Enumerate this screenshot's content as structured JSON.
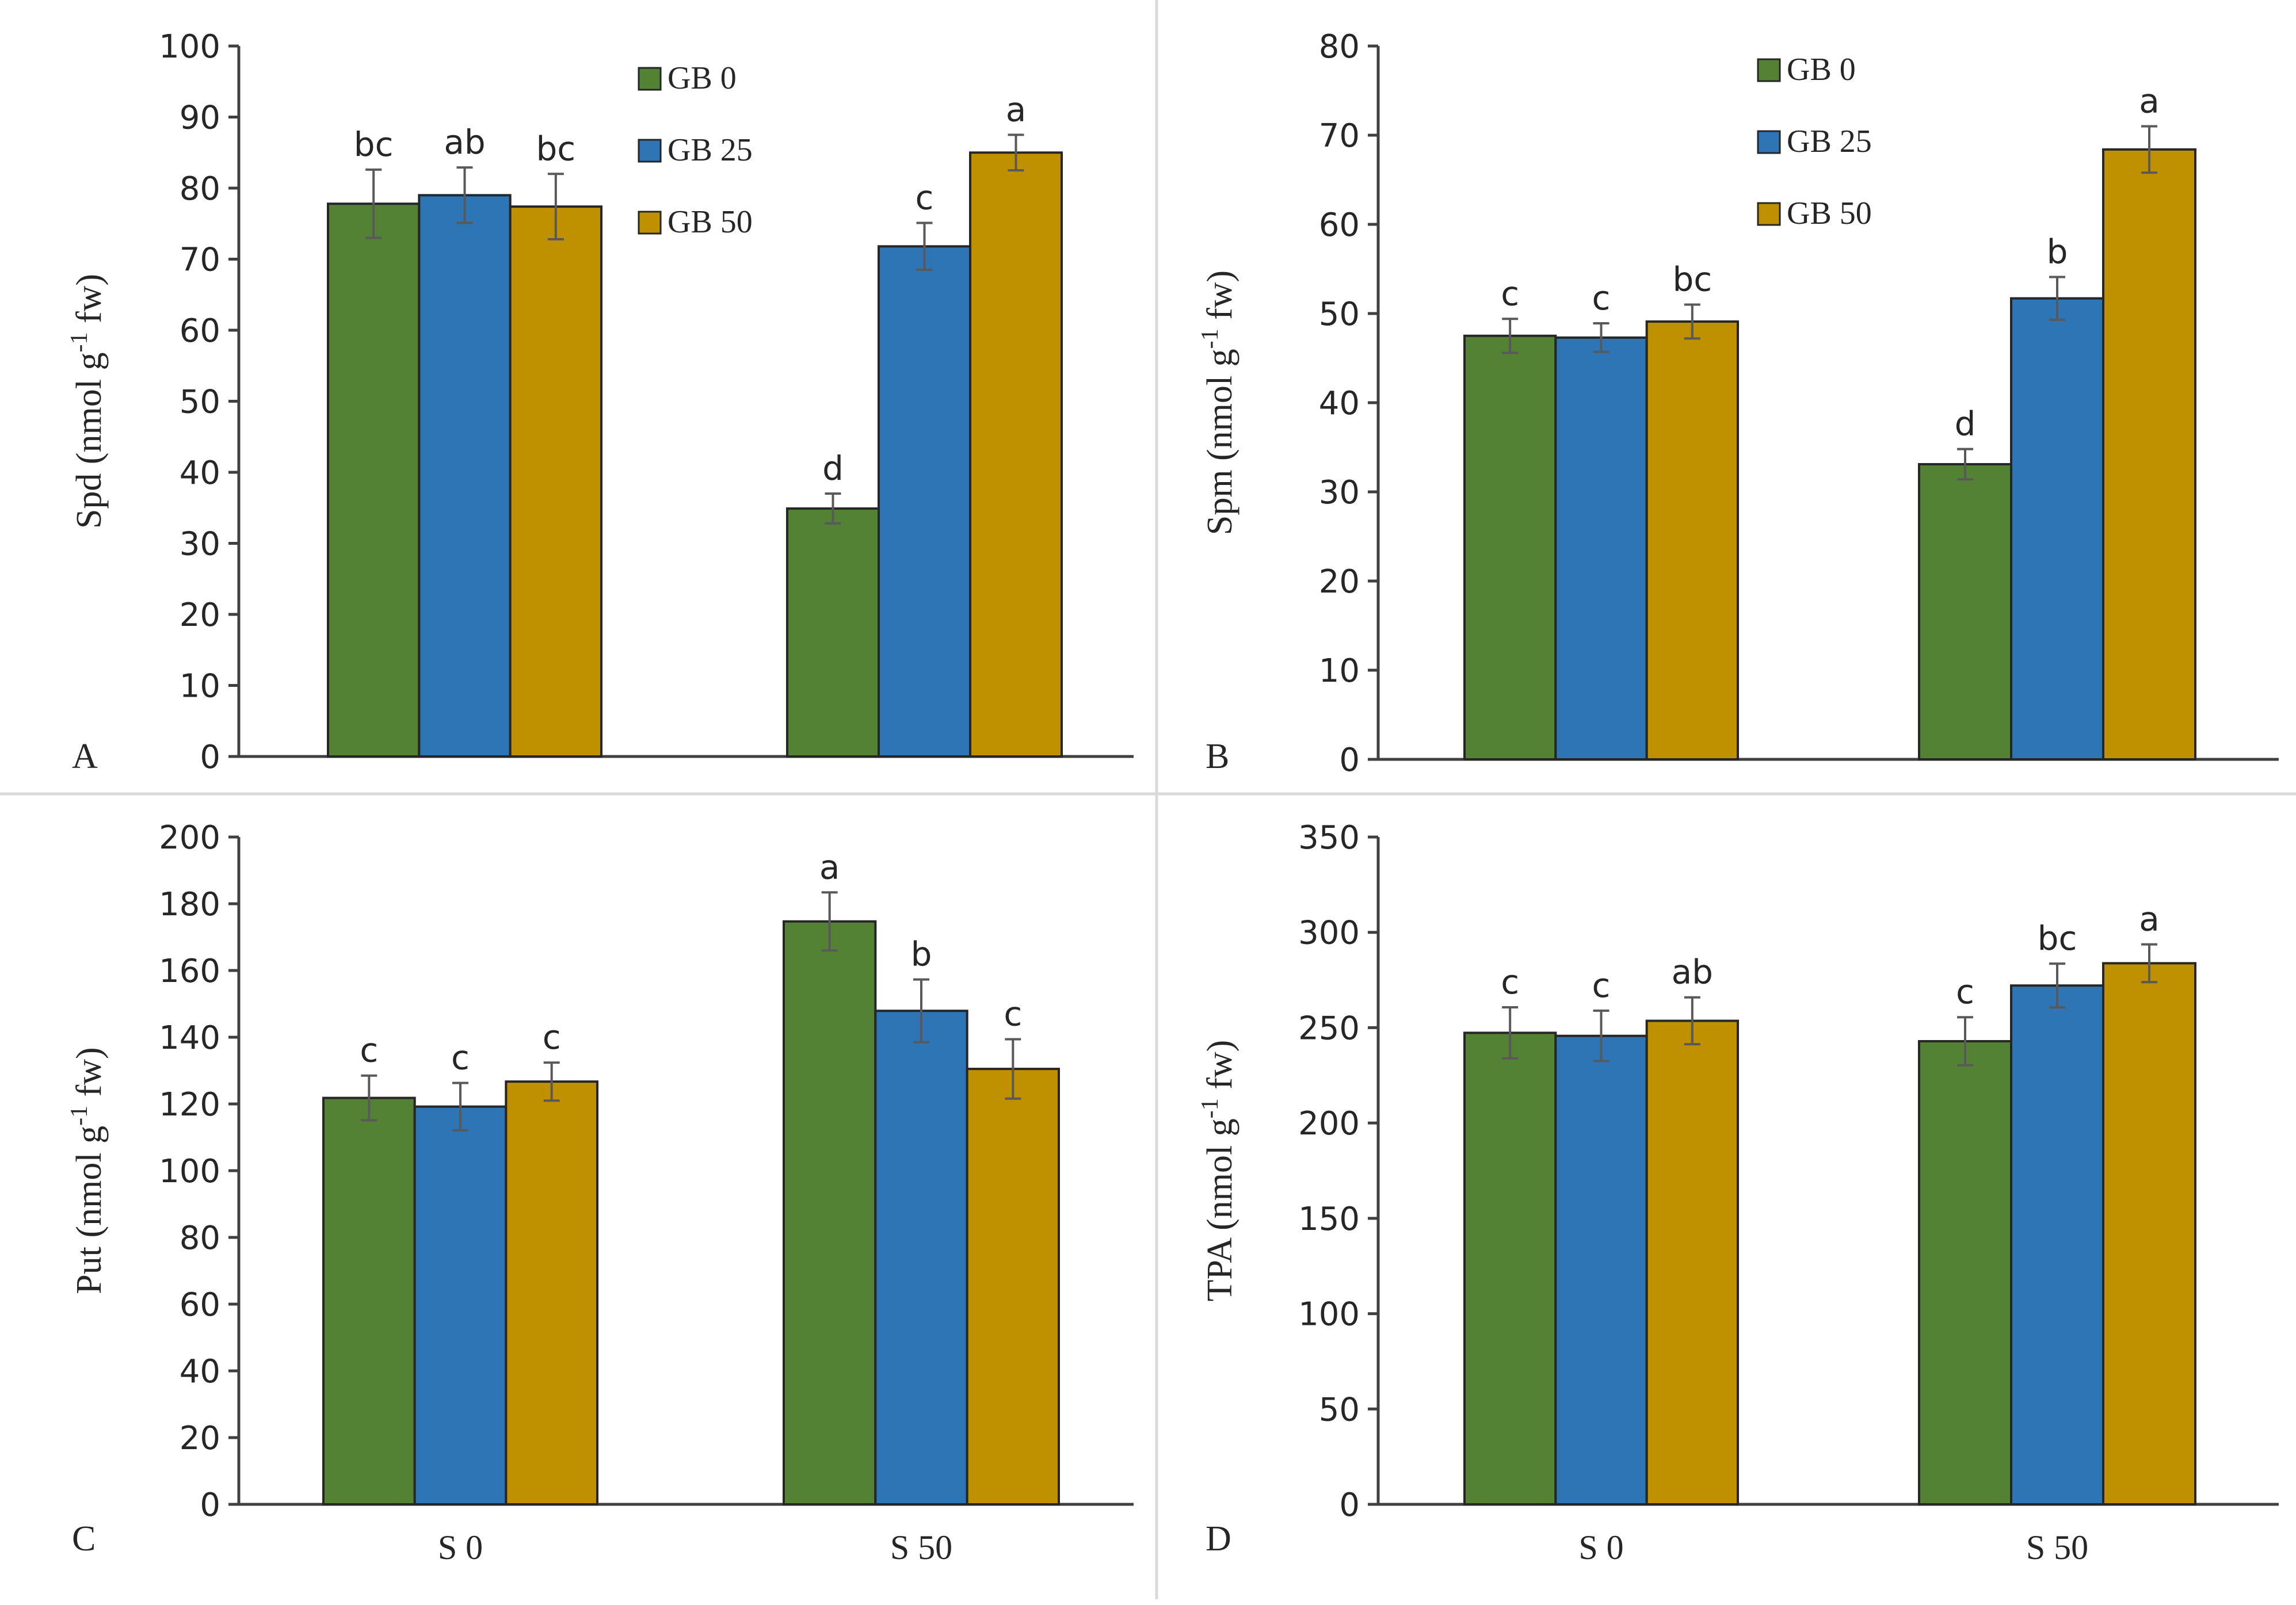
{
  "colors": {
    "GB 0": "#548235",
    "GB 25": "#2e75b6",
    "GB 50": "#bf9000"
  },
  "chart_data": [
    {
      "type": "bar",
      "panel": "A",
      "ylabel": "Spd (nmol g-1 fw)",
      "ylabel_main": "Spd (nmol g",
      "ylabel_sup": "-1",
      "ylabel_tail": " fw)",
      "ylim": [
        0,
        100
      ],
      "yticks": [
        0,
        10,
        20,
        30,
        40,
        50,
        60,
        70,
        80,
        90,
        100
      ],
      "categories": [
        "S 0",
        "S 50"
      ],
      "show_categories": false,
      "legend": true,
      "series": [
        {
          "name": "GB 0",
          "values": [
            77.8,
            34.9
          ],
          "errors": [
            4.8,
            2.1
          ],
          "labels": [
            "bc",
            "d"
          ]
        },
        {
          "name": "GB 25",
          "values": [
            79.0,
            71.8
          ],
          "errors": [
            3.9,
            3.3
          ],
          "labels": [
            "ab",
            "c"
          ]
        },
        {
          "name": "GB 50",
          "values": [
            77.4,
            85.0
          ],
          "errors": [
            4.6,
            2.5
          ],
          "labels": [
            "bc",
            "a"
          ]
        }
      ]
    },
    {
      "type": "bar",
      "panel": "B",
      "ylabel": "Spm (nmol g-1 fw)",
      "ylabel_main": "Spm (nmol g",
      "ylabel_sup": "-1",
      "ylabel_tail": " fw)",
      "ylim": [
        0,
        80
      ],
      "yticks": [
        0,
        10,
        20,
        30,
        40,
        50,
        60,
        70,
        80
      ],
      "categories": [
        "S 0",
        "S 50"
      ],
      "show_categories": false,
      "legend": true,
      "series": [
        {
          "name": "GB 0",
          "values": [
            47.5,
            33.1
          ],
          "errors": [
            1.9,
            1.7
          ],
          "labels": [
            "c",
            "d"
          ]
        },
        {
          "name": "GB 25",
          "values": [
            47.3,
            51.7
          ],
          "errors": [
            1.6,
            2.4
          ],
          "labels": [
            "c",
            "b"
          ]
        },
        {
          "name": "GB 50",
          "values": [
            49.1,
            68.4
          ],
          "errors": [
            1.9,
            2.6
          ],
          "labels": [
            "bc",
            "a"
          ]
        }
      ]
    },
    {
      "type": "bar",
      "panel": "C",
      "ylabel": "Put (nmol g-1 fw)",
      "ylabel_main": "Put (nmol g",
      "ylabel_sup": "-1",
      "ylabel_tail": " fw)",
      "ylim": [
        0,
        200
      ],
      "yticks": [
        0,
        20,
        40,
        60,
        80,
        100,
        120,
        140,
        160,
        180,
        200
      ],
      "categories": [
        "S 0",
        "S 50"
      ],
      "show_categories": true,
      "legend": false,
      "series": [
        {
          "name": "GB 0",
          "values": [
            121.8,
            174.7
          ],
          "errors": [
            6.7,
            8.7
          ],
          "labels": [
            "c",
            "a"
          ]
        },
        {
          "name": "GB 25",
          "values": [
            119.2,
            147.9
          ],
          "errors": [
            7.1,
            9.4
          ],
          "labels": [
            "c",
            "b"
          ]
        },
        {
          "name": "GB 50",
          "values": [
            126.7,
            130.5
          ],
          "errors": [
            5.7,
            8.9
          ],
          "labels": [
            "c",
            "c"
          ]
        }
      ]
    },
    {
      "type": "bar",
      "panel": "D",
      "ylabel": "TPA (nmol g-1 fw)",
      "ylabel_main": "TPA (nmol g",
      "ylabel_sup": "-1",
      "ylabel_tail": " fw)",
      "ylim": [
        0,
        350
      ],
      "yticks": [
        0,
        50,
        100,
        150,
        200,
        250,
        300,
        350
      ],
      "categories": [
        "S 0",
        "S 50"
      ],
      "show_categories": true,
      "legend": false,
      "series": [
        {
          "name": "GB 0",
          "values": [
            247.3,
            242.9
          ],
          "errors": [
            13.4,
            12.6
          ],
          "labels": [
            "c",
            "c"
          ]
        },
        {
          "name": "GB 25",
          "values": [
            245.7,
            272.1
          ],
          "errors": [
            13.2,
            11.5
          ],
          "labels": [
            "c",
            "bc"
          ]
        },
        {
          "name": "GB 50",
          "values": [
            253.6,
            283.8
          ],
          "errors": [
            12.3,
            9.9
          ],
          "labels": [
            "ab",
            "a"
          ]
        }
      ]
    }
  ]
}
